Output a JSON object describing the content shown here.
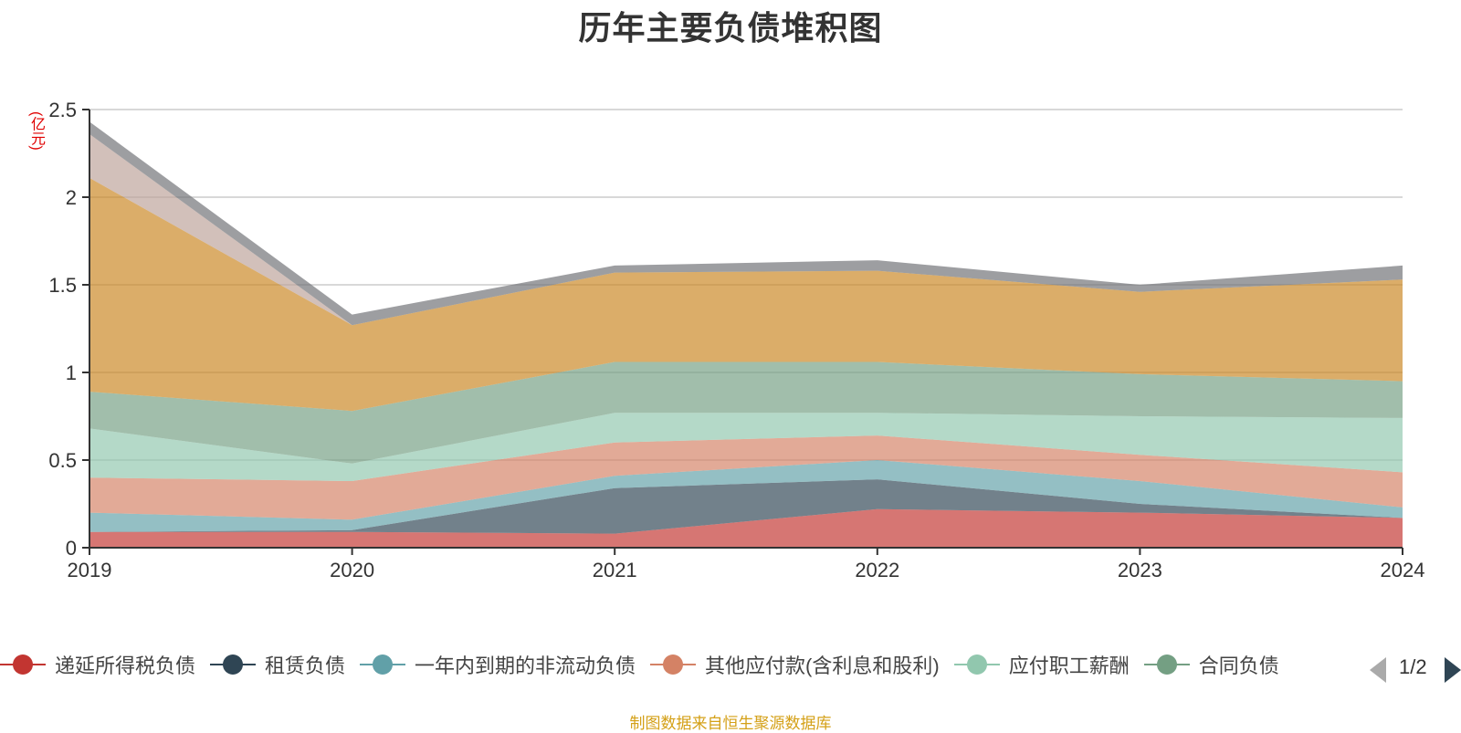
{
  "title": "历年主要负债堆积图",
  "unit_label": "(亿元)",
  "source": "制图数据来自恒生聚源数据库",
  "pager": {
    "label": "1/2"
  },
  "chart_data": {
    "type": "area",
    "stacked": true,
    "x": [
      "2019",
      "2020",
      "2021",
      "2022",
      "2023",
      "2024"
    ],
    "ylim": [
      0,
      2.5
    ],
    "yticks": [
      "0",
      "0.5",
      "1",
      "1.5",
      "2",
      "2.5"
    ],
    "grid": true,
    "legend_position": "bottom",
    "series": [
      {
        "name": "递延所得税负债",
        "color": "#c23531",
        "values": [
          0.09,
          0.09,
          0.08,
          0.22,
          0.2,
          0.17
        ]
      },
      {
        "name": "租赁负债",
        "color": "#2f4554",
        "values": [
          0.0,
          0.01,
          0.26,
          0.17,
          0.05,
          0.0
        ]
      },
      {
        "name": "一年内到期的非流动负债",
        "color": "#61a0a8",
        "values": [
          0.11,
          0.06,
          0.07,
          0.11,
          0.13,
          0.06
        ]
      },
      {
        "name": "其他应付款(含利息和股利)",
        "color": "#d48265",
        "values": [
          0.2,
          0.22,
          0.19,
          0.14,
          0.15,
          0.2
        ]
      },
      {
        "name": "应付职工薪酬",
        "color": "#91c7ae",
        "values": [
          0.28,
          0.1,
          0.17,
          0.13,
          0.22,
          0.31
        ]
      },
      {
        "name": "合同负债",
        "color": "#749f83",
        "values": [
          0.21,
          0.3,
          0.29,
          0.29,
          0.24,
          0.21
        ]
      },
      {
        "name": "",
        "color": "#ca8622",
        "values": [
          1.22,
          0.49,
          0.51,
          0.52,
          0.47,
          0.58
        ]
      },
      {
        "name": "",
        "color": "#bda29a",
        "values": [
          0.25,
          0.0,
          0.0,
          0.0,
          0.0,
          0.0
        ]
      },
      {
        "name": "",
        "color": "#6e7074",
        "values": [
          0.07,
          0.06,
          0.04,
          0.06,
          0.04,
          0.08
        ]
      }
    ],
    "legend_visible": [
      "递延所得税负债",
      "租赁负债",
      "一年内到期的非流动负债",
      "其他应付款(含利息和股利)",
      "应付职工薪酬",
      "合同负债"
    ]
  }
}
